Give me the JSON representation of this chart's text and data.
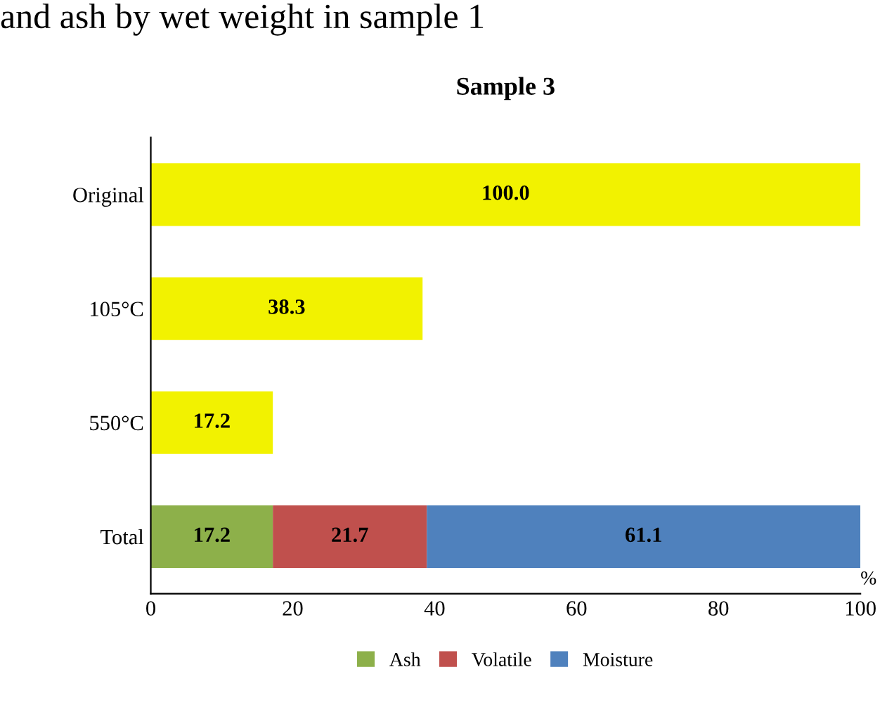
{
  "chart_data": {
    "type": "bar",
    "orientation": "horizontal",
    "stacked": true,
    "title": "Sample 3",
    "categories": [
      "Original",
      "105°C",
      "550°C",
      "Total"
    ],
    "series": [
      {
        "name": "Ash",
        "color": "#8db04a",
        "values": [
          null,
          null,
          null,
          17.2
        ]
      },
      {
        "name": "Volatile",
        "color": "#c0504d",
        "values": [
          null,
          null,
          null,
          21.7
        ]
      },
      {
        "name": "Moisture",
        "color": "#4f81bd",
        "values": [
          null,
          null,
          null,
          61.1
        ]
      },
      {
        "color": "#f2f200",
        "values": [
          100.0,
          38.3,
          17.2,
          null
        ],
        "value_labels": [
          "100.0",
          "38.3",
          "17.2",
          null
        ]
      }
    ],
    "xlim": [
      0,
      100
    ],
    "xticks": [
      0,
      20,
      40,
      60,
      80,
      100
    ],
    "data_labels": true,
    "legend": "bottom",
    "grid": false,
    "annotations": [
      "and ash by wet weight in sample 1",
      "%"
    ]
  }
}
